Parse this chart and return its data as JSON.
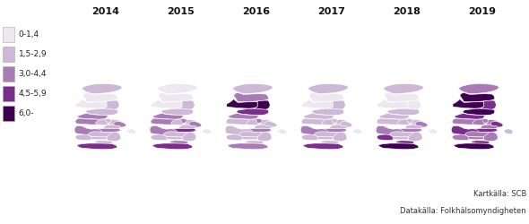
{
  "years": [
    "2014",
    "2015",
    "2016",
    "2017",
    "2018",
    "2019"
  ],
  "legend_labels": [
    "0-1,4",
    "1,5-2,9",
    "3,0-4,4",
    "4,5-5,9",
    "6,0-"
  ],
  "legend_colors": [
    "#ede8f0",
    "#cdb8d6",
    "#a97bb5",
    "#7b2d8b",
    "#3d0050"
  ],
  "source_text1": "Kartkälla: SCB",
  "source_text2": "Datakälla: Folkhälsomyndigheten",
  "background_color": "#ffffff",
  "map_edge_color": "#ffffff",
  "map_edge_width": 0.4,
  "title_fontsize": 8,
  "legend_fontsize": 6.5,
  "source_fontsize": 6,
  "colors": {
    "c0": "#ede8f0",
    "c1": "#cdb8d6",
    "c2": "#a97bb5",
    "c3": "#7b2d8b",
    "c4": "#3d0050"
  },
  "region_data": {
    "2014": {
      "Norrbotten": "c1",
      "Vasterbotten": "c0",
      "Jamtland": "c0",
      "Vasternorrland": "c1",
      "Gavleborg": "c1",
      "Dalarna": "c2",
      "Vastmanland": "c1",
      "Uppsala": "c1",
      "Stockholm": "c2",
      "Sodermanland": "c1",
      "Ostergotland": "c2",
      "Varmland": "c2",
      "Orebro": "c1",
      "Vastragotaland": "c2",
      "Jonkoping": "c1",
      "Kalmar": "c1",
      "Kronoberg": "c1",
      "Halland": "c1",
      "Blekinge": "c1",
      "Skane": "c3",
      "Gotland": "c0"
    },
    "2015": {
      "Norrbotten": "c0",
      "Vasterbotten": "c0",
      "Jamtland": "c0",
      "Vasternorrland": "c1",
      "Gavleborg": "c1",
      "Dalarna": "c2",
      "Vastmanland": "c2",
      "Uppsala": "c1",
      "Stockholm": "c2",
      "Sodermanland": "c1",
      "Ostergotland": "c3",
      "Varmland": "c2",
      "Orebro": "c1",
      "Vastragotaland": "c2",
      "Jonkoping": "c1",
      "Kalmar": "c1",
      "Kronoberg": "c1",
      "Halland": "c1",
      "Blekinge": "c2",
      "Skane": "c3",
      "Gotland": "c0"
    },
    "2016": {
      "Norrbotten": "c1",
      "Vasterbotten": "c2",
      "Jamtland": "c4",
      "Vasternorrland": "c4",
      "Gavleborg": "c3",
      "Dalarna": "c2",
      "Vastmanland": "c2",
      "Uppsala": "c1",
      "Stockholm": "c1",
      "Sodermanland": "c1",
      "Ostergotland": "c2",
      "Varmland": "c1",
      "Orebro": "c1",
      "Vastragotaland": "c1",
      "Jonkoping": "c1",
      "Kalmar": "c1",
      "Kronoberg": "c1",
      "Halland": "c1",
      "Blekinge": "c1",
      "Skane": "c2",
      "Gotland": "c0"
    },
    "2017": {
      "Norrbotten": "c1",
      "Vasterbotten": "c0",
      "Jamtland": "c0",
      "Vasternorrland": "c1",
      "Gavleborg": "c1",
      "Dalarna": "c1",
      "Vastmanland": "c1",
      "Uppsala": "c1",
      "Stockholm": "c1",
      "Sodermanland": "c1",
      "Ostergotland": "c2",
      "Varmland": "c1",
      "Orebro": "c1",
      "Vastragotaland": "c2",
      "Jonkoping": "c1",
      "Kalmar": "c1",
      "Kronoberg": "c1",
      "Halland": "c1",
      "Blekinge": "c1",
      "Skane": "c3",
      "Gotland": "c0"
    },
    "2018": {
      "Norrbotten": "c1",
      "Vasterbotten": "c0",
      "Jamtland": "c0",
      "Vasternorrland": "c0",
      "Gavleborg": "c1",
      "Dalarna": "c1",
      "Vastmanland": "c1",
      "Uppsala": "c1",
      "Stockholm": "c2",
      "Sodermanland": "c1",
      "Ostergotland": "c2",
      "Varmland": "c1",
      "Orebro": "c1",
      "Vastragotaland": "c2",
      "Jonkoping": "c1",
      "Kalmar": "c1",
      "Kronoberg": "c1",
      "Halland": "c3",
      "Blekinge": "c3",
      "Skane": "c4",
      "Gotland": "c0"
    },
    "2019": {
      "Norrbotten": "c2",
      "Vasterbotten": "c4",
      "Jamtland": "c4",
      "Vasternorrland": "c3",
      "Gavleborg": "c4",
      "Dalarna": "c3",
      "Vastmanland": "c2",
      "Uppsala": "c2",
      "Stockholm": "c3",
      "Sodermanland": "c2",
      "Ostergotland": "c3",
      "Varmland": "c2",
      "Orebro": "c2",
      "Vastragotaland": "c3",
      "Jonkoping": "c2",
      "Kalmar": "c2",
      "Kronoberg": "c2",
      "Halland": "c2",
      "Blekinge": "c3",
      "Skane": "c4",
      "Gotland": "c1"
    }
  }
}
